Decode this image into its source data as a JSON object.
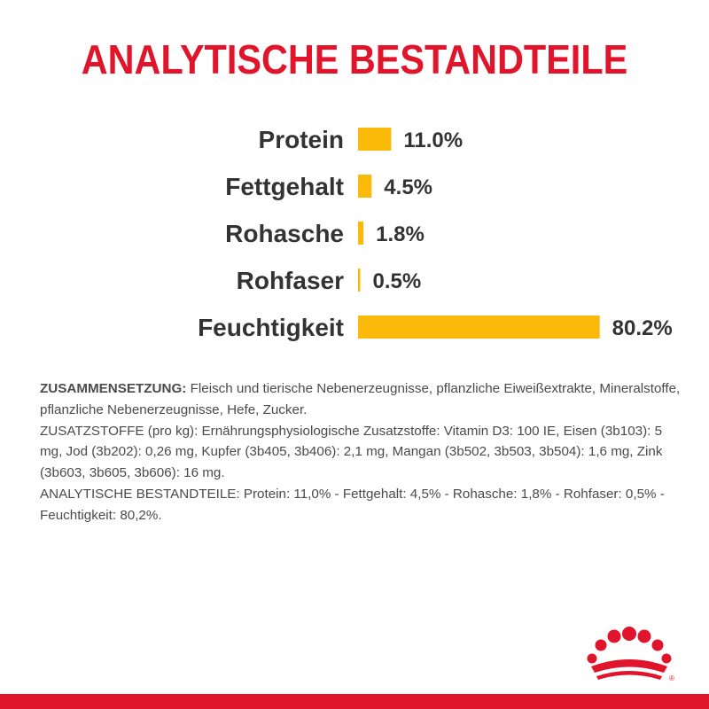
{
  "title": "ANALYTISCHE BESTANDTEILE",
  "colors": {
    "title": "#e0142a",
    "bar": "#fbb90a",
    "label": "#333333",
    "brand_red": "#e0142a"
  },
  "chart_data": {
    "type": "bar",
    "orientation": "horizontal",
    "categories": [
      "Protein",
      "Fettgehalt",
      "Rohasche",
      "Rohfaser",
      "Feuchtigkeit"
    ],
    "values": [
      11.0,
      4.5,
      1.8,
      0.5,
      80.2
    ],
    "value_labels": [
      "11.0%",
      "4.5%",
      "1.8%",
      "0.5%",
      "80.2%"
    ],
    "unit": "%"
  },
  "composition": {
    "label": "ZUSAMMENSETZUNG:",
    "text": " Fleisch und tierische Nebenerzeugnisse, pflanzliche Eiweißextrakte, Mineralstoffe, pflanzliche Nebenerzeugnisse, Hefe, Zucker.",
    "additives": "ZUSATZSTOFFE (pro kg): Ernährungsphysiologische Zusatzstoffe: Vitamin D3: 100 IE, Eisen (3b103): 5 mg, Jod (3b202): 0,26 mg, Kupfer (3b405, 3b406): 2,1 mg, Mangan (3b502, 3b503, 3b504): 1,6 mg, Zink (3b603, 3b605, 3b606): 16 mg.",
    "analytical": "ANALYTISCHE BESTANDTEILE: Protein: 11,0% - Fettgehalt: 4,5% - Rohasche: 1,8% - Rohfaser: 0,5% - Feuchtigkeit: 80,2%."
  },
  "logo": {
    "icon": "royal-crown-logo-icon",
    "trademark": "®"
  }
}
